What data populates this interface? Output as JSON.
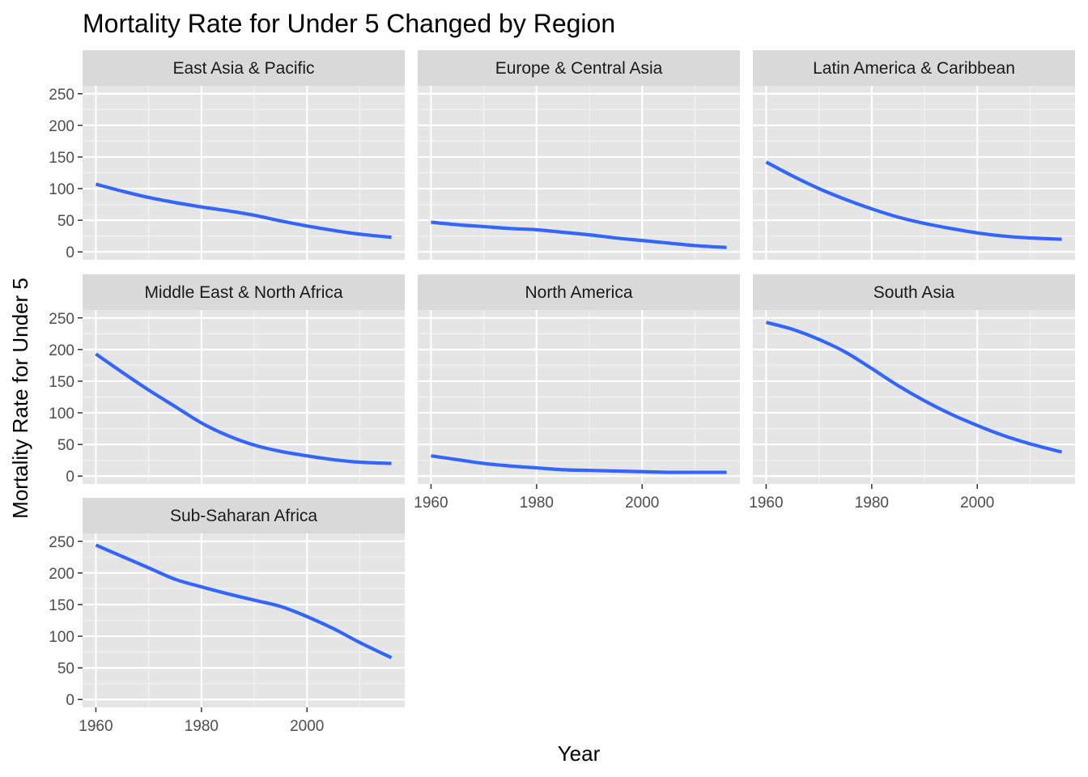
{
  "chart_data": {
    "type": "line",
    "layout": "facet-wrap",
    "title": "Mortality Rate for Under 5 Changed by Region",
    "xlabel": "Year",
    "ylabel": "Mortality Rate for Under 5",
    "xlim": [
      1960,
      2016
    ],
    "ylim": [
      0,
      250
    ],
    "x_ticks": [
      1960,
      1980,
      2000
    ],
    "y_ticks": [
      0,
      50,
      100,
      150,
      200,
      250
    ],
    "grid": true,
    "line_color": "#3366FF",
    "panel_bg": "#E5E5E5",
    "strip_bg": "#D9D9D9",
    "x": [
      1960,
      1965,
      1970,
      1975,
      1980,
      1985,
      1990,
      1995,
      2000,
      2005,
      2010,
      2016
    ],
    "series": [
      {
        "name": "East Asia & Pacific",
        "values": [
          107,
          96,
          86,
          78,
          71,
          65,
          58,
          49,
          41,
          34,
          28,
          23
        ]
      },
      {
        "name": "Europe & Central Asia",
        "values": [
          47,
          43,
          40,
          37,
          35,
          31,
          27,
          22,
          18,
          14,
          10,
          7
        ]
      },
      {
        "name": "Latin America & Caribbean",
        "values": [
          142,
          120,
          100,
          83,
          68,
          55,
          45,
          37,
          30,
          25,
          22,
          20
        ]
      },
      {
        "name": "Middle East & North Africa",
        "values": [
          193,
          164,
          136,
          110,
          84,
          64,
          49,
          39,
          32,
          26,
          22,
          20
        ]
      },
      {
        "name": "North America",
        "values": [
          32,
          26,
          20,
          16,
          13,
          10,
          9,
          8,
          7,
          6,
          6,
          6
        ]
      },
      {
        "name": "South Asia",
        "values": [
          243,
          232,
          216,
          196,
          170,
          143,
          119,
          98,
          80,
          64,
          51,
          38
        ]
      },
      {
        "name": "Sub-Saharan Africa",
        "values": [
          244,
          226,
          208,
          190,
          178,
          167,
          157,
          147,
          131,
          112,
          90,
          66
        ]
      }
    ]
  }
}
